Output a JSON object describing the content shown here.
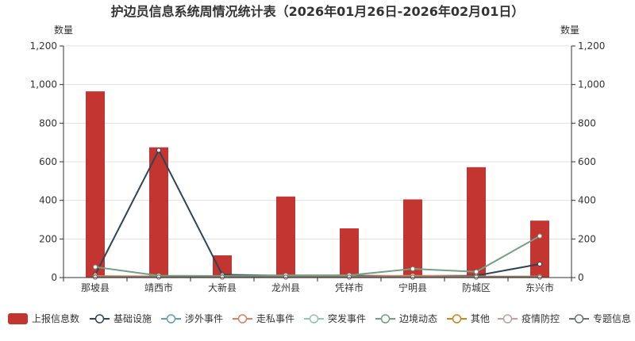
{
  "chart_data": {
    "type": "bar",
    "title": "护边员信息系统周情况统计表（2026年01月26日-2026年02月01日）",
    "ylabel_left": "数量",
    "ylabel_right": "数量",
    "ylim": [
      0,
      1200
    ],
    "yticks": [
      "0",
      "200",
      "400",
      "600",
      "800",
      "1,000",
      "1,200"
    ],
    "categories": [
      "那坡县",
      "靖西市",
      "大新县",
      "龙州县",
      "凭祥市",
      "宁明县",
      "防城区",
      "东兴市"
    ],
    "grid": true,
    "legend_position": "bottom",
    "series": [
      {
        "name": "上报信息数",
        "kind": "bar",
        "color": "#c23531",
        "values": [
          965,
          675,
          115,
          420,
          255,
          405,
          572,
          295
        ]
      },
      {
        "name": "基础设施",
        "kind": "line",
        "color": "#2f4554",
        "values": [
          15,
          660,
          15,
          10,
          10,
          8,
          10,
          70
        ]
      },
      {
        "name": "涉外事件",
        "kind": "line",
        "color": "#61a0a8",
        "values": [
          5,
          5,
          5,
          5,
          5,
          5,
          5,
          5
        ]
      },
      {
        "name": "走私事件",
        "kind": "line",
        "color": "#d48265",
        "values": [
          8,
          6,
          5,
          6,
          5,
          10,
          5,
          5
        ]
      },
      {
        "name": "突发事件",
        "kind": "line",
        "color": "#91c7ae",
        "values": [
          2,
          2,
          2,
          2,
          2,
          2,
          2,
          2
        ]
      },
      {
        "name": "边境动态",
        "kind": "line",
        "color": "#749f83",
        "values": [
          55,
          10,
          8,
          12,
          12,
          45,
          30,
          215
        ]
      },
      {
        "name": "其他",
        "kind": "line",
        "color": "#ca8622",
        "values": [
          3,
          3,
          3,
          3,
          3,
          3,
          3,
          3
        ]
      },
      {
        "name": "疫情防控",
        "kind": "line",
        "color": "#bda29a",
        "values": [
          1,
          1,
          1,
          1,
          1,
          1,
          1,
          1
        ]
      },
      {
        "name": "专题信息",
        "kind": "line",
        "color": "#6e7074",
        "values": [
          2,
          2,
          2,
          2,
          2,
          2,
          2,
          2
        ]
      }
    ],
    "legend_order": [
      "上报信息数",
      "基础设施",
      "涉外事件",
      "走私事件",
      "突发事件",
      "边境动态",
      "其他",
      "疫情防控",
      "专题信息"
    ],
    "legend_colors": [
      "#c23531",
      "#2f4554",
      "#61a0a8",
      "#d48265",
      "#91c7ae",
      "#749f83",
      "#ca8622",
      "#bda29a",
      "#6e7074"
    ]
  }
}
